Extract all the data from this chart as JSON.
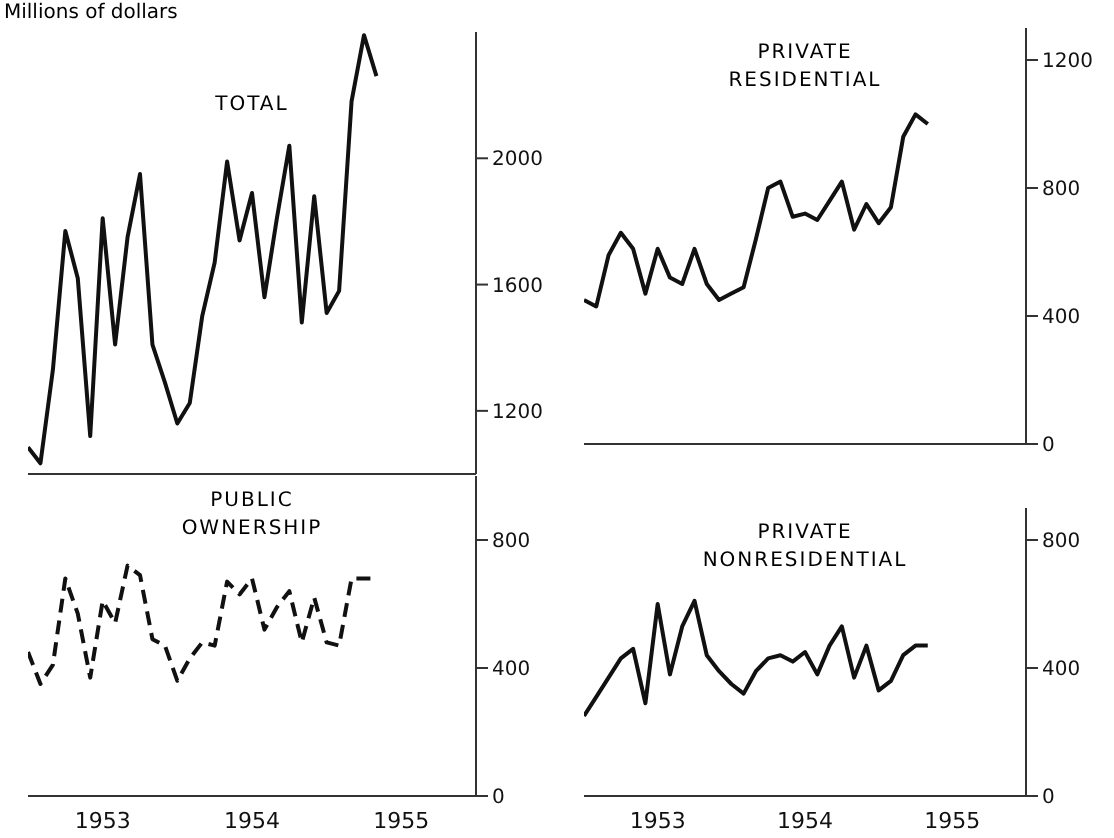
{
  "chart_data": [
    {
      "type": "line",
      "title": "TOTAL",
      "ylabel": "Millions of dollars",
      "x": [
        "1953-01",
        "1953-02",
        "1953-03",
        "1953-04",
        "1953-05",
        "1953-06",
        "1953-07",
        "1953-08",
        "1953-09",
        "1953-10",
        "1953-11",
        "1953-12",
        "1954-01",
        "1954-02",
        "1954-03",
        "1954-04",
        "1954-05",
        "1954-06",
        "1954-07",
        "1954-08",
        "1954-09",
        "1954-10",
        "1954-11",
        "1954-12",
        "1955-01",
        "1955-02",
        "1955-03",
        "1955-04",
        "1955-05"
      ],
      "series": [
        {
          "color": "#111111",
          "values": [
            1085,
            1034,
            1330,
            1770,
            1620,
            1120,
            1810,
            1410,
            1750,
            1950,
            1410,
            1290,
            1160,
            1225,
            1500,
            1670,
            1990,
            1740,
            1890,
            1560,
            1810,
            2040,
            1480,
            1880,
            1510,
            1580,
            2180,
            2390,
            2260
          ]
        }
      ],
      "xlim": [
        "1953-01",
        "1956-01"
      ],
      "ylim": [
        1000,
        2400
      ],
      "yticks": [
        1200,
        1600,
        2000
      ],
      "tick_labels": "y",
      "line_style": "solid",
      "marker": "none"
    },
    {
      "type": "line",
      "title": "PUBLIC OWNERSHIP",
      "x": [
        "1953-01",
        "1953-02",
        "1953-03",
        "1953-04",
        "1953-05",
        "1953-06",
        "1953-07",
        "1953-08",
        "1953-09",
        "1953-10",
        "1953-11",
        "1953-12",
        "1954-01",
        "1954-02",
        "1954-03",
        "1954-04",
        "1954-05",
        "1954-06",
        "1954-07",
        "1954-08",
        "1954-09",
        "1954-10",
        "1954-11",
        "1954-12",
        "1955-01",
        "1955-02",
        "1955-03",
        "1955-04",
        "1955-05"
      ],
      "series": [
        {
          "color": "#111111",
          "values": [
            450,
            350,
            410,
            680,
            570,
            370,
            610,
            540,
            720,
            690,
            490,
            470,
            360,
            430,
            480,
            470,
            670,
            630,
            680,
            520,
            590,
            640,
            480,
            620,
            480,
            470,
            680,
            680,
            680
          ]
        }
      ],
      "xlim": [
        "1953-01",
        "1956-01"
      ],
      "xticks": [
        {
          "value": "1953-07",
          "label": "1953"
        },
        {
          "value": "1954-07",
          "label": "1954"
        },
        {
          "value": "1955-07",
          "label": "1955"
        }
      ],
      "ylim": [
        0,
        1000
      ],
      "yticks": [
        0,
        400,
        800
      ],
      "line_style": "dashed",
      "marker": "none"
    },
    {
      "type": "line",
      "title": "PRIVATE RESIDENTIAL",
      "x": [
        "1953-01",
        "1953-02",
        "1953-03",
        "1953-04",
        "1953-05",
        "1953-06",
        "1953-07",
        "1953-08",
        "1953-09",
        "1953-10",
        "1953-11",
        "1953-12",
        "1954-01",
        "1954-02",
        "1954-03",
        "1954-04",
        "1954-05",
        "1954-06",
        "1954-07",
        "1954-08",
        "1954-09",
        "1954-10",
        "1954-11",
        "1954-12",
        "1955-01",
        "1955-02",
        "1955-03",
        "1955-04",
        "1955-05"
      ],
      "series": [
        {
          "color": "#111111",
          "values": [
            450,
            430,
            590,
            660,
            610,
            470,
            610,
            520,
            500,
            610,
            500,
            450,
            470,
            490,
            640,
            800,
            820,
            710,
            720,
            700,
            760,
            820,
            670,
            750,
            690,
            740,
            960,
            1030,
            1000
          ]
        }
      ],
      "xlim": [
        "1953-01",
        "1956-01"
      ],
      "ylim": [
        0,
        1300
      ],
      "yticks": [
        0,
        400,
        800,
        1200
      ],
      "tick_labels": "y",
      "line_style": "solid",
      "marker": "none"
    },
    {
      "type": "line",
      "title": "PRIVATE NONRESIDENTIAL",
      "x": [
        "1953-01",
        "1953-02",
        "1953-03",
        "1953-04",
        "1953-05",
        "1953-06",
        "1953-07",
        "1953-08",
        "1953-09",
        "1953-10",
        "1953-11",
        "1953-12",
        "1954-01",
        "1954-02",
        "1954-03",
        "1954-04",
        "1954-05",
        "1954-06",
        "1954-07",
        "1954-08",
        "1954-09",
        "1954-10",
        "1954-11",
        "1954-12",
        "1955-01",
        "1955-02",
        "1955-03",
        "1955-04",
        "1955-05"
      ],
      "series": [
        {
          "color": "#111111",
          "values": [
            250,
            310,
            370,
            430,
            460,
            290,
            600,
            380,
            530,
            610,
            440,
            390,
            350,
            320,
            390,
            430,
            440,
            420,
            450,
            380,
            470,
            530,
            370,
            470,
            330,
            360,
            440,
            470,
            470
          ]
        }
      ],
      "xlim": [
        "1953-01",
        "1956-01"
      ],
      "xticks": [
        {
          "value": "1953-07",
          "label": "1953"
        },
        {
          "value": "1954-07",
          "label": "1954"
        },
        {
          "value": "1955-07",
          "label": "1955"
        }
      ],
      "ylim": [
        0,
        900
      ],
      "yticks": [
        0,
        400,
        800
      ],
      "line_style": "solid",
      "marker": "none"
    }
  ]
}
